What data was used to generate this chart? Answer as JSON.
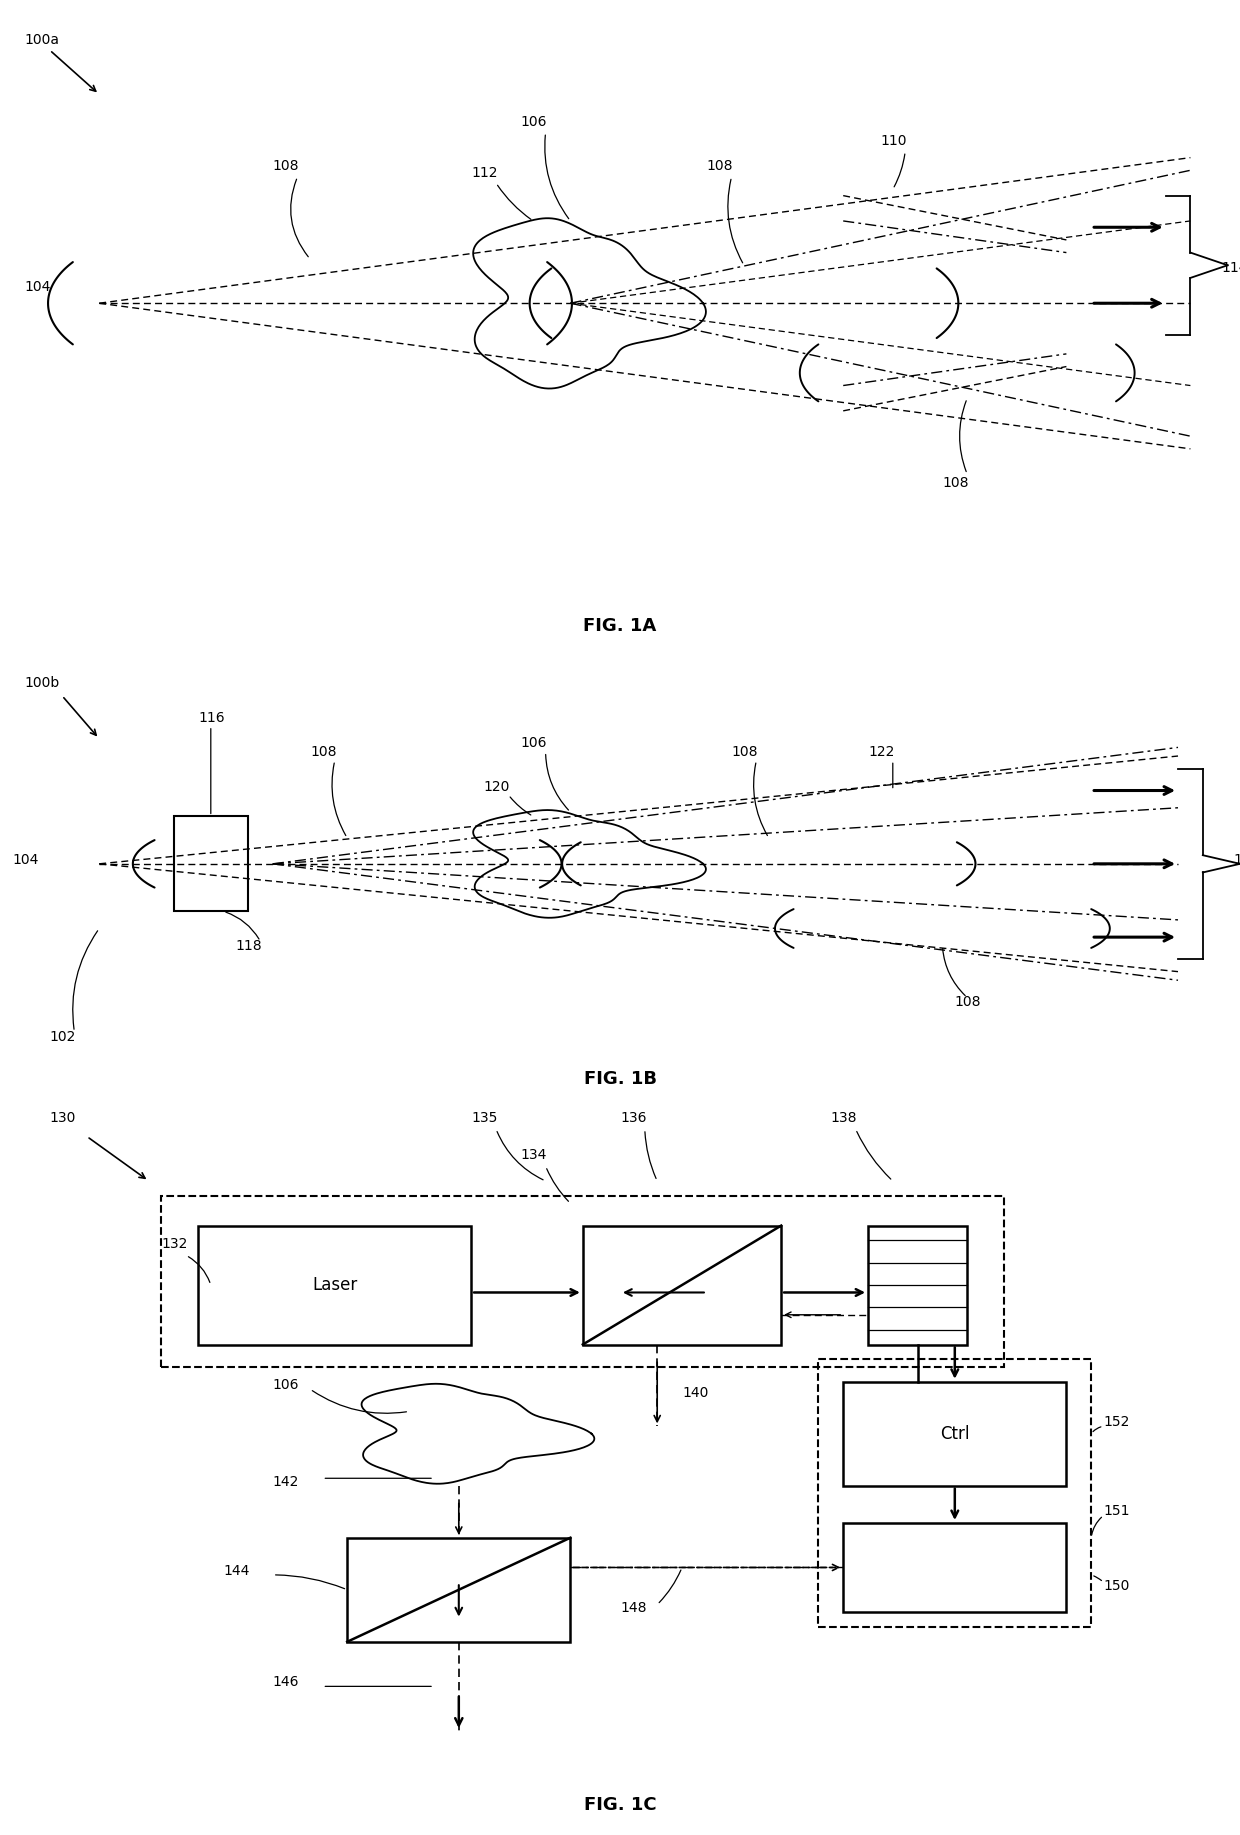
{
  "fig_labels": {
    "fig1a": "FIG. 1A",
    "fig1b": "FIG. 1B",
    "fig1c": "FIG. 1C"
  },
  "background_color": "#ffffff",
  "line_color": "#000000",
  "font_size_label": 10,
  "font_size_fig": 13
}
